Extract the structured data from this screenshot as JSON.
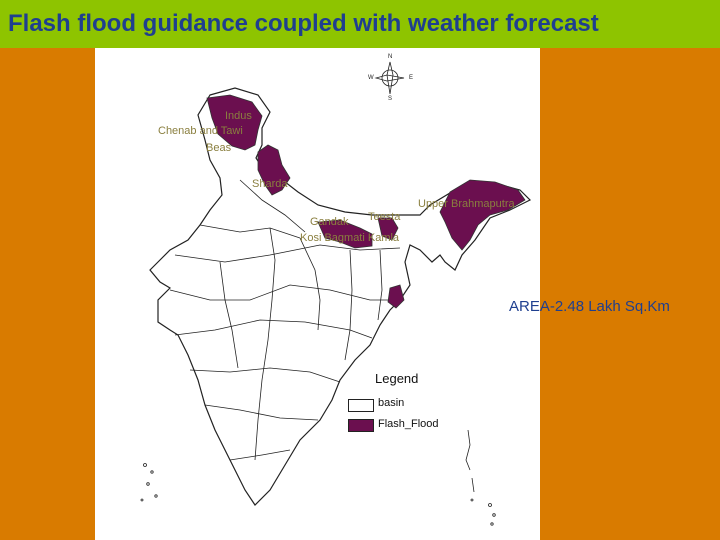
{
  "title": "Flash flood guidance coupled with weather forecast",
  "area_note": "AREA-2.48 Lakh Sq.Km",
  "legend": {
    "title": "Legend",
    "items": [
      {
        "label": "basin",
        "color": "#ffffff"
      },
      {
        "label": "Flash_Flood",
        "color": "#6b0f4f"
      }
    ]
  },
  "basin_labels": {
    "indus": "Indus",
    "chenab_tawi": "Chenab and Tawi",
    "beas": "Beas",
    "sharda": "Sharda",
    "upper_brahmaputra": "Upper Brahmaputra",
    "gandak": "Gandak",
    "teesta": "Teesta",
    "kosi_bagmati_kamla": "Kosi Bagmati Kamla"
  },
  "compass": {
    "n": "N",
    "s": "S",
    "e": "E",
    "w": "W"
  },
  "colors": {
    "background": "#d97b00",
    "title_bar": "#8ec400",
    "title_text": "#1f3f8f",
    "flash_flood": "#6b0f4f"
  }
}
